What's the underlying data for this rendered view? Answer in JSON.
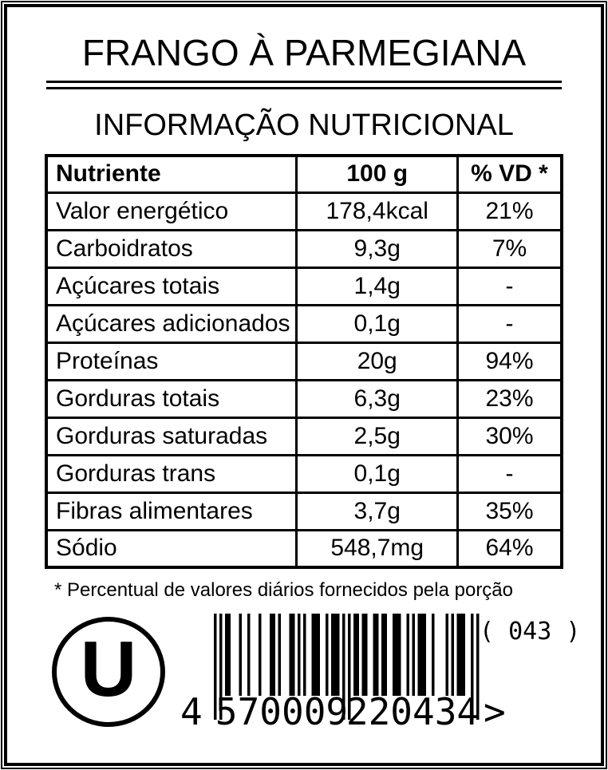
{
  "label": {
    "title": "FRANGO À PARMEGIANA",
    "subtitle": "INFORMAÇÃO NUTRICIONAL",
    "colors": {
      "ink": "#000000",
      "paper": "#ffffff"
    },
    "table": {
      "headers": [
        "Nutriente",
        "100 g",
        "% VD *"
      ],
      "rows": [
        [
          "Valor energético",
          "178,4kcal",
          "21%"
        ],
        [
          "Carboidratos",
          "9,3g",
          "7%"
        ],
        [
          "Açúcares totais",
          "1,4g",
          "-"
        ],
        [
          "Açúcares adicionados",
          "0,1g",
          "-"
        ],
        [
          "Proteínas",
          "20g",
          "94%"
        ],
        [
          "Gorduras totais",
          "6,3g",
          "23%"
        ],
        [
          "Gorduras saturadas",
          "2,5g",
          "30%"
        ],
        [
          "Gorduras trans",
          "0,1g",
          "-"
        ],
        [
          "Fibras alimentares",
          "3,7g",
          "35%"
        ],
        [
          "Sódio",
          "548,7mg",
          "64%"
        ]
      ]
    },
    "footnote": "* Percentual de valores diários fornecidos pela porção",
    "kosher_symbol": "U",
    "barcode": {
      "type": "EAN-13",
      "value": "4570009220434",
      "display": {
        "first": "4",
        "left_group": "570009",
        "right_group": "220434",
        "trailer": ">"
      }
    },
    "batch_code": "( 043 )"
  }
}
